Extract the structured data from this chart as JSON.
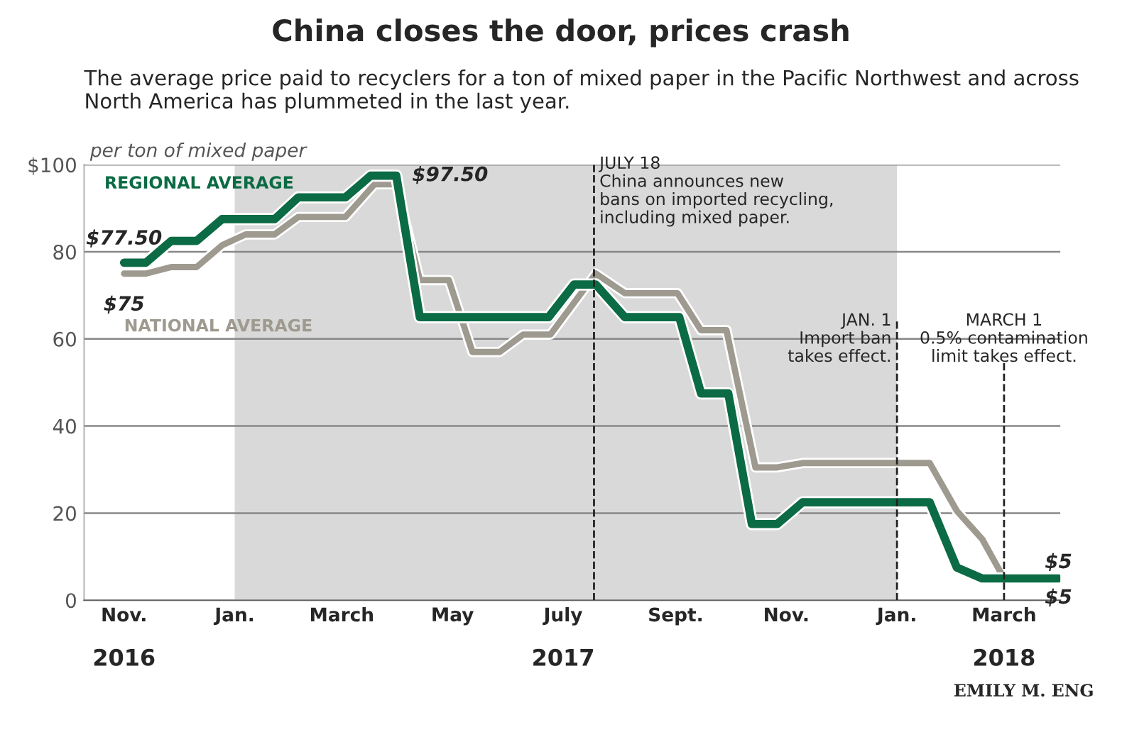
{
  "chart_data": {
    "type": "line",
    "title": "China closes the door, prices crash",
    "subtitle": "The average price paid to recyclers for a ton of mixed paper in the Pacific Northwest and across North America has plummeted in the last year.",
    "series": [
      {
        "name": "REGIONAL AVERAGE",
        "color": "#0b6b45",
        "x": [
          "2016-11-01",
          "2016-11-13",
          "2016-11-27",
          "2016-12-11",
          "2016-12-25",
          "2017-01-23",
          "2017-02-05",
          "2017-03-03",
          "2017-03-17",
          "2017-03-31",
          "2017-04-13",
          "2017-06-23",
          "2017-07-07",
          "2017-07-19",
          "2017-08-04",
          "2017-09-03",
          "2017-09-15",
          "2017-09-30",
          "2017-10-13",
          "2017-10-27",
          "2017-11-10",
          "2018-01-19",
          "2018-02-03",
          "2018-02-17",
          "2018-03-31"
        ],
        "values": [
          77.5,
          77.5,
          82.5,
          82.5,
          87.5,
          87.5,
          92.5,
          92.5,
          97.5,
          97.5,
          65,
          65,
          72.5,
          72.5,
          65,
          65,
          47.5,
          47.5,
          17.5,
          17.5,
          22.5,
          22.5,
          7.5,
          5,
          5
        ]
      },
      {
        "name": "NATIONAL AVERAGE",
        "color": "#9e9a8f",
        "x": [
          "2016-11-01",
          "2016-11-13",
          "2016-11-27",
          "2016-12-11",
          "2016-12-25",
          "2017-01-07",
          "2017-01-23",
          "2017-02-05",
          "2017-03-03",
          "2017-03-19",
          "2017-03-31",
          "2017-04-13",
          "2017-04-29",
          "2017-05-12",
          "2017-05-27",
          "2017-06-09",
          "2017-06-24",
          "2017-07-19",
          "2017-08-04",
          "2017-09-02",
          "2017-09-15",
          "2017-09-29",
          "2017-10-15",
          "2017-10-27",
          "2017-11-10",
          "2018-01-19",
          "2018-02-03",
          "2018-02-17",
          "2018-03-01",
          "2018-03-31"
        ],
        "values": [
          75,
          75,
          76.5,
          76.5,
          81.5,
          84,
          84,
          88,
          88,
          95.5,
          95.5,
          73.5,
          73.5,
          57,
          57,
          61,
          61,
          75,
          70.5,
          70.5,
          62,
          62,
          30.5,
          30.5,
          31.5,
          31.5,
          20.5,
          14,
          5,
          5
        ]
      }
    ],
    "xlim": [
      "2016-10-10",
      "2018-04-01"
    ],
    "xticks": [
      {
        "value": "2016-11-01",
        "label": "Nov."
      },
      {
        "value": "2017-01-01",
        "label": "Jan."
      },
      {
        "value": "2017-03-01",
        "label": "March"
      },
      {
        "value": "2017-05-01",
        "label": "May"
      },
      {
        "value": "2017-07-01",
        "label": "July"
      },
      {
        "value": "2017-09-01",
        "label": "Sept."
      },
      {
        "value": "2017-11-01",
        "label": "Nov."
      },
      {
        "value": "2018-01-01",
        "label": "Jan."
      },
      {
        "value": "2018-03-01",
        "label": "March"
      }
    ],
    "ylim": [
      0,
      100
    ],
    "yticks": [
      0,
      20,
      40,
      60,
      80,
      {
        "value": 100,
        "label": "$100"
      }
    ],
    "ylabel": "per ton of mixed paper",
    "grid": "y",
    "legend": false,
    "line_style": "solid",
    "marker": "none",
    "bands": [
      {
        "axis": "x",
        "from": "2017-01-01",
        "to": "2018-01-01",
        "label": null,
        "color": "#d9d9d9"
      }
    ],
    "ref_lines": [
      {
        "axis": "x",
        "value": "2017-07-18",
        "label": "JULY 18\nChina announces new\nbans on imported recycling,\nincluding mixed paper.",
        "line_style": "dashed",
        "color": "#222222"
      },
      {
        "axis": "x",
        "value": "2018-01-01",
        "label": "JAN. 1\nImport ban\ntakes effect.",
        "line_style": "dashed",
        "color": "#222222"
      },
      {
        "axis": "x",
        "value": "2018-03-01",
        "label": "MARCH 1\n0.5% contamination\nlimit takes effect.",
        "line_style": "dashed",
        "color": "#222222"
      }
    ],
    "annotations": [
      {
        "text": "$77.50",
        "x": "2016-11-01",
        "y": 77.5
      },
      {
        "text": "$75",
        "x": "2016-11-01",
        "y": 75
      },
      {
        "text": "$97.50",
        "x": "2017-03-31",
        "y": 97.5
      },
      {
        "text": "$5",
        "x": "2018-03-31",
        "y": 5
      },
      {
        "text": "$5",
        "x": "2018-03-31",
        "y": 5
      },
      "2016",
      "2017",
      "2018",
      "EMILY M. ENG"
    ]
  }
}
